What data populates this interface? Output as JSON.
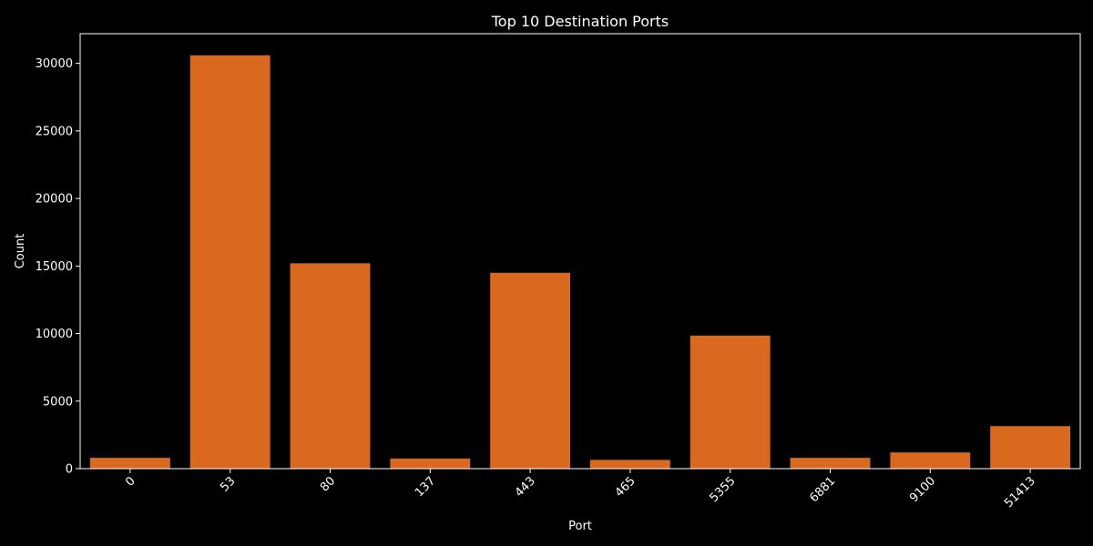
{
  "chart_data": {
    "type": "bar",
    "title": "Top 10 Destination Ports",
    "xlabel": "Port",
    "ylabel": "Count",
    "categories": [
      "0",
      "53",
      "80",
      "137",
      "443",
      "465",
      "5355",
      "6881",
      "9100",
      "51413"
    ],
    "values": [
      800,
      30600,
      15200,
      750,
      14500,
      650,
      9850,
      800,
      1200,
      3150
    ],
    "ylim": [
      0,
      32200
    ],
    "yticks": [
      0,
      5000,
      10000,
      15000,
      20000,
      25000,
      30000
    ],
    "bar_color": "#d9691e",
    "background_color": "#000000",
    "text_color": "#ffffff",
    "grid": false,
    "xtick_rotation": 45
  }
}
